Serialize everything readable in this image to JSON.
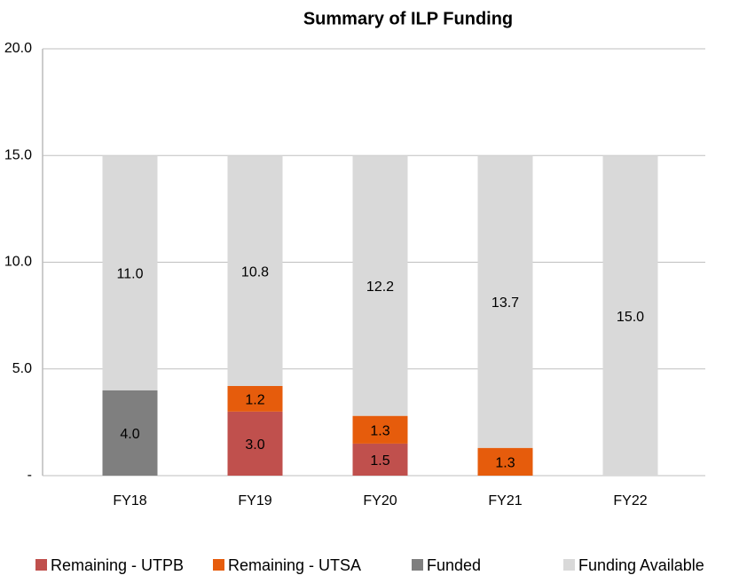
{
  "chart_data": {
    "type": "stacked_bar",
    "title": "Summary of ILP Funding",
    "categories": [
      "FY18",
      "FY19",
      "FY20",
      "FY21",
      "FY22"
    ],
    "series": [
      {
        "name": "Remaining - UTPB",
        "color": "#c0504d",
        "values": [
          null,
          3.0,
          1.5,
          null,
          null
        ],
        "value_labels": [
          null,
          "3.0",
          "1.5",
          null,
          null
        ]
      },
      {
        "name": "Remaining - UTSA",
        "color": "#e65c0c",
        "values": [
          null,
          1.2,
          1.3,
          1.3,
          null
        ],
        "value_labels": [
          null,
          "1.2",
          "1.3",
          "1.3",
          null
        ]
      },
      {
        "name": "Funded",
        "color": "#7f7f7f",
        "values": [
          4.0,
          null,
          null,
          null,
          null
        ],
        "value_labels": [
          "4.0",
          null,
          null,
          null,
          null
        ]
      },
      {
        "name": "Funding Available",
        "color": "#d9d9d9",
        "values": [
          11.0,
          10.8,
          12.2,
          13.7,
          15.0
        ],
        "value_labels": [
          "11.0",
          "10.8",
          "12.2",
          "13.7",
          "15.0"
        ]
      }
    ],
    "ylim": [
      0,
      20
    ],
    "yticks": [
      {
        "value": 0,
        "label": "-"
      },
      {
        "value": 5,
        "label": "5.0"
      },
      {
        "value": 10,
        "label": "10.0"
      },
      {
        "value": 15,
        "label": "15.0"
      },
      {
        "value": 20,
        "label": "20.0"
      }
    ],
    "grid": true,
    "legend": "bottom"
  }
}
